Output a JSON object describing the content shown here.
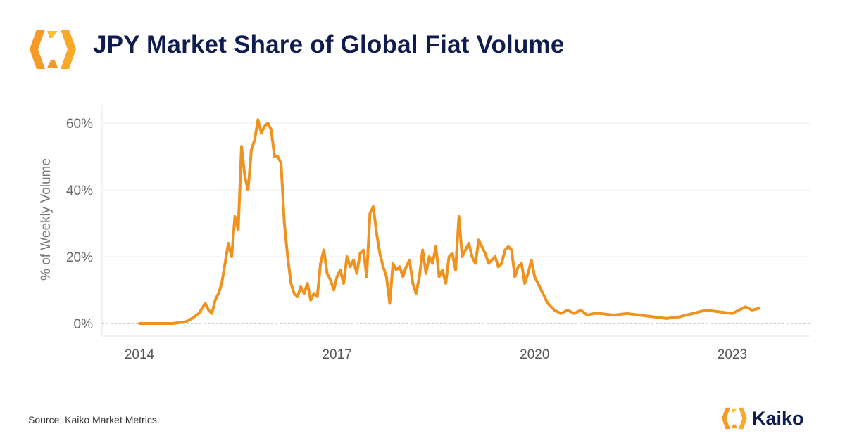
{
  "header": {
    "title": "JPY Market Share of Global Fiat Volume"
  },
  "footer": {
    "source": "Source: Kaiko Market Metrics.",
    "brand_name": "Kaiko"
  },
  "colors": {
    "line": "#f0921f",
    "title": "#0f1d4e",
    "logo_orange": "#f59a24",
    "logo_yellow": "#fbc02d"
  },
  "icons": {
    "header_logo": "kaiko-logo-icon",
    "footer_logo": "kaiko-logo-icon"
  },
  "chart_data": {
    "type": "line",
    "title": "JPY Market Share of Global Fiat Volume",
    "xlabel": "",
    "ylabel": "% of Weekly Volume",
    "xlim": [
      2014.0,
      2023.45
    ],
    "ylim": [
      0,
      60
    ],
    "xticks": [
      2014,
      2017,
      2020,
      2023
    ],
    "xtick_labels": [
      "2014",
      "2017",
      "2020",
      "2023"
    ],
    "yticks": [
      0,
      20,
      40,
      60
    ],
    "ytick_labels": [
      "0%",
      "20%",
      "40%",
      "60%"
    ],
    "grid": {
      "horizontal": true,
      "vertical": false
    },
    "legend": "none",
    "series": [
      {
        "values_unit": "% of weekly volume",
        "x": [
          2014.0,
          2014.5,
          2014.7,
          2014.8,
          2014.9,
          2015.0,
          2015.05,
          2015.1,
          2015.15,
          2015.2,
          2015.25,
          2015.3,
          2015.35,
          2015.4,
          2015.45,
          2015.5,
          2015.55,
          2015.6,
          2015.65,
          2015.7,
          2015.75,
          2015.8,
          2015.85,
          2015.9,
          2015.95,
          2016.0,
          2016.05,
          2016.1,
          2016.15,
          2016.2,
          2016.25,
          2016.3,
          2016.35,
          2016.4,
          2016.45,
          2016.5,
          2016.55,
          2016.6,
          2016.65,
          2016.7,
          2016.75,
          2016.8,
          2016.85,
          2016.9,
          2016.95,
          2017.0,
          2017.05,
          2017.1,
          2017.15,
          2017.2,
          2017.25,
          2017.3,
          2017.35,
          2017.4,
          2017.45,
          2017.5,
          2017.55,
          2017.6,
          2017.65,
          2017.7,
          2017.75,
          2017.8,
          2017.85,
          2017.9,
          2017.95,
          2018.0,
          2018.05,
          2018.1,
          2018.15,
          2018.2,
          2018.25,
          2018.3,
          2018.35,
          2018.4,
          2018.45,
          2018.5,
          2018.55,
          2018.6,
          2018.65,
          2018.7,
          2018.75,
          2018.8,
          2018.85,
          2018.9,
          2018.95,
          2019.0,
          2019.05,
          2019.1,
          2019.15,
          2019.2,
          2019.25,
          2019.3,
          2019.35,
          2019.4,
          2019.45,
          2019.5,
          2019.55,
          2019.6,
          2019.65,
          2019.7,
          2019.75,
          2019.8,
          2019.85,
          2019.9,
          2019.95,
          2020.0,
          2020.1,
          2020.2,
          2020.3,
          2020.4,
          2020.5,
          2020.6,
          2020.7,
          2020.8,
          2020.9,
          2021.0,
          2021.2,
          2021.4,
          2021.6,
          2021.8,
          2022.0,
          2022.2,
          2022.4,
          2022.6,
          2022.8,
          2023.0,
          2023.1,
          2023.2,
          2023.3,
          2023.4
        ],
        "values": [
          0,
          0,
          0.5,
          1.5,
          3,
          6,
          4,
          3,
          7,
          9,
          12,
          18,
          24,
          20,
          32,
          28,
          53,
          44,
          40,
          52,
          55,
          61,
          57,
          59,
          60,
          58,
          50,
          50,
          48,
          30,
          20,
          12,
          9,
          8,
          11,
          9,
          12,
          7,
          9,
          8,
          18,
          22,
          15,
          13,
          10,
          14,
          16,
          12,
          20,
          17,
          19,
          15,
          21,
          22,
          14,
          33,
          35,
          27,
          21,
          17,
          14,
          6,
          18,
          16,
          17,
          14,
          17,
          19,
          12,
          9,
          14,
          22,
          15,
          20,
          18,
          23,
          14,
          16,
          12,
          20,
          21,
          16,
          32,
          20,
          22,
          24,
          20,
          18,
          25,
          23,
          21,
          18,
          19,
          20,
          17,
          18,
          22,
          23,
          22,
          14,
          17,
          18,
          12,
          15,
          19,
          14,
          10,
          6,
          4,
          3,
          4,
          3,
          4,
          2.5,
          3,
          3,
          2.5,
          3,
          2.5,
          2,
          1.5,
          2,
          3,
          4,
          3.5,
          3,
          4,
          5,
          4,
          4.5
        ]
      }
    ]
  }
}
